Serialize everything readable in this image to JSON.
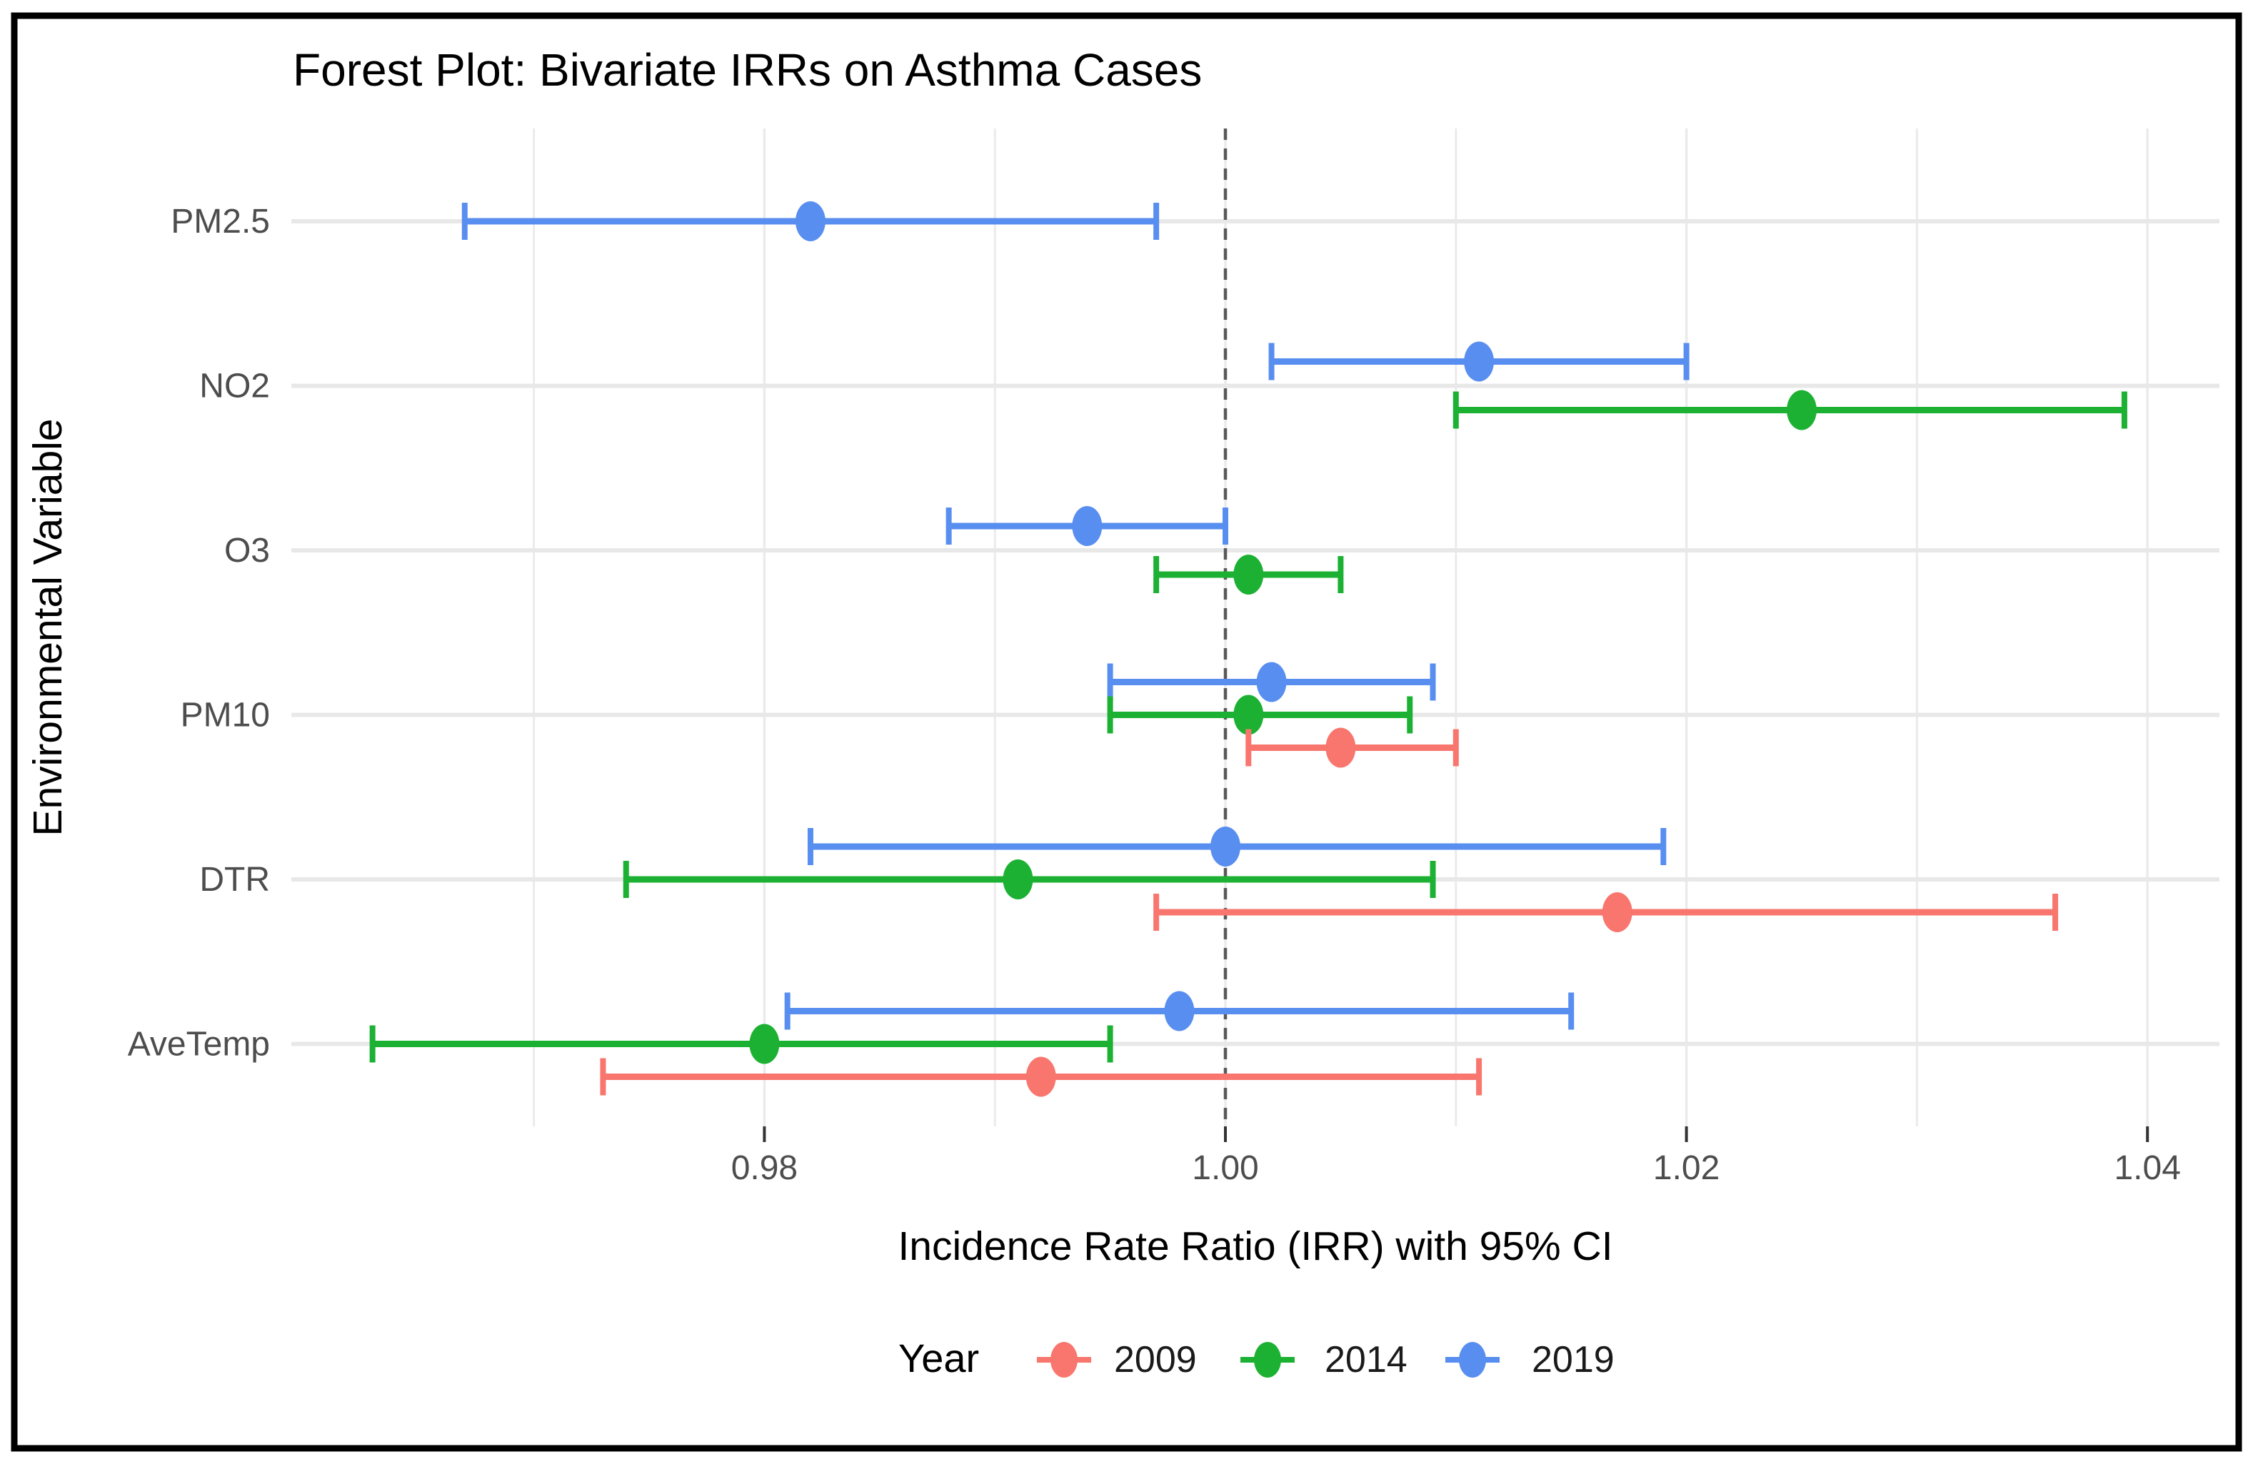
{
  "figure": {
    "background": "#ffffff",
    "border_color": "#000000"
  },
  "chart_data": {
    "type": "scatter",
    "subtype": "forest-plot-with-error-bars",
    "title": "Forest Plot: Bivariate IRRs on Asthma Cases",
    "xlabel": "Incidence Rate Ratio (IRR) with 95% CI",
    "ylabel": "Environmental Variable",
    "categories": [
      "PM2.5",
      "NO2",
      "O3",
      "PM10",
      "DTR",
      "AveTemp"
    ],
    "x_ticks": [
      0.98,
      1.0,
      1.02,
      1.04
    ],
    "x_tick_labels": [
      "0.98",
      "1.00",
      "1.02",
      "1.04"
    ],
    "x_gridlines": [
      0.97,
      0.98,
      0.99,
      1.0,
      1.01,
      1.02,
      1.03,
      1.04
    ],
    "xlim": [
      0.9595,
      1.0431
    ],
    "reference_line_x": 1.0,
    "grid": true,
    "legend": {
      "title": "Year",
      "position": "bottom"
    },
    "series": [
      {
        "name": "2009",
        "color": "#F8766D",
        "points": [
          {
            "category": "PM10",
            "irr": 1.005,
            "ci_low": 1.001,
            "ci_high": 1.01
          },
          {
            "category": "DTR",
            "irr": 1.017,
            "ci_low": 0.997,
            "ci_high": 1.036
          },
          {
            "category": "AveTemp",
            "irr": 0.992,
            "ci_low": 0.973,
            "ci_high": 1.011
          }
        ]
      },
      {
        "name": "2014",
        "color": "#1CB132",
        "points": [
          {
            "category": "NO2",
            "irr": 1.025,
            "ci_low": 1.01,
            "ci_high": 1.039
          },
          {
            "category": "O3",
            "irr": 1.001,
            "ci_low": 0.997,
            "ci_high": 1.005
          },
          {
            "category": "PM10",
            "irr": 1.001,
            "ci_low": 0.995,
            "ci_high": 1.008
          },
          {
            "category": "DTR",
            "irr": 0.991,
            "ci_low": 0.974,
            "ci_high": 1.009
          },
          {
            "category": "AveTemp",
            "irr": 0.98,
            "ci_low": 0.963,
            "ci_high": 0.995
          }
        ]
      },
      {
        "name": "2019",
        "color": "#588EF0",
        "points": [
          {
            "category": "PM2.5",
            "irr": 0.982,
            "ci_low": 0.967,
            "ci_high": 0.997
          },
          {
            "category": "NO2",
            "irr": 1.011,
            "ci_low": 1.002,
            "ci_high": 1.02
          },
          {
            "category": "O3",
            "irr": 0.994,
            "ci_low": 0.988,
            "ci_high": 1.0
          },
          {
            "category": "PM10",
            "irr": 1.002,
            "ci_low": 0.995,
            "ci_high": 1.009
          },
          {
            "category": "DTR",
            "irr": 1.0,
            "ci_low": 0.982,
            "ci_high": 1.019
          },
          {
            "category": "AveTemp",
            "irr": 0.998,
            "ci_low": 0.981,
            "ci_high": 1.015
          }
        ]
      }
    ],
    "colors": {
      "gridline": "#EBEBEB",
      "row_gridline": "#E8E8E8",
      "reference_line": "#595959",
      "tick_mark": "#333333",
      "tick_text": "#4D4D4D",
      "title_text": "#000000",
      "legend_text": "#1A1A1A"
    }
  }
}
